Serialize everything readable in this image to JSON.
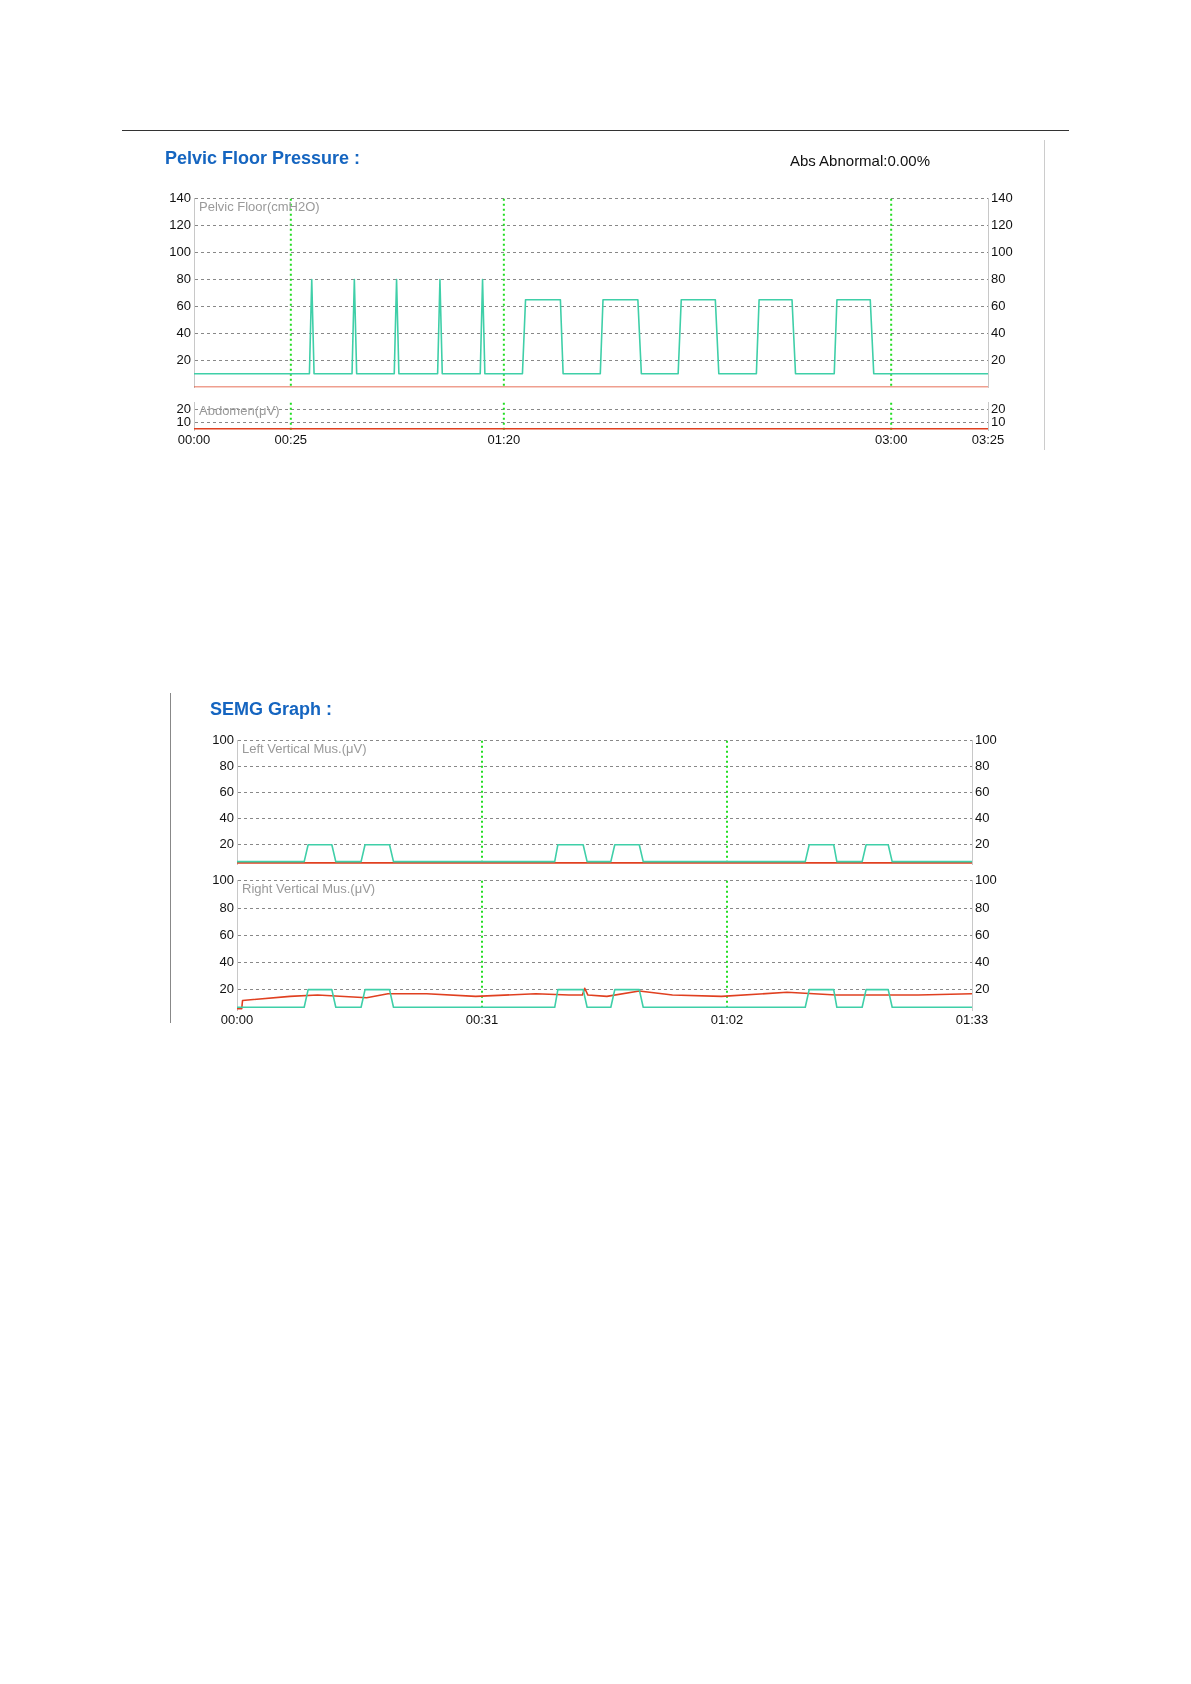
{
  "chart_data": [
    {
      "type": "line",
      "title": "Pelvic Floor Pressure :",
      "ylabel": "Pelvic Floor(cmH2O)",
      "annotations": [
        "Abs Abnormal:0.00%"
      ],
      "xlim": [
        0,
        205
      ],
      "ylim": [
        0,
        140
      ],
      "yticks": [
        20,
        40,
        60,
        80,
        100,
        120,
        140
      ],
      "y2lim": [
        0,
        140
      ],
      "y2ticks": [
        20,
        40,
        60,
        80,
        100,
        120,
        140
      ],
      "tick_labels": "y",
      "grid": "y",
      "legend": false,
      "marker": "none",
      "ref_lines": [
        {
          "axis": "x",
          "value": 25,
          "color": "#22dd22",
          "line_style": "dotted"
        },
        {
          "axis": "x",
          "value": 80,
          "color": "#22dd22",
          "line_style": "dotted"
        },
        {
          "axis": "x",
          "value": 180,
          "color": "#22dd22",
          "line_style": "dotted"
        }
      ],
      "series": [
        {
          "color": "#3fcfa8",
          "x": [
            0,
            29.8,
            30.4,
            31.0,
            40.8,
            41.4,
            42.0,
            51.7,
            52.3,
            52.9,
            62.9,
            63.5,
            64.1,
            73.9,
            74.5,
            75.1,
            84.8,
            85.6,
            94.6,
            95.3,
            104.9,
            105.6,
            114.6,
            115.5,
            125.0,
            125.8,
            134.6,
            135.5,
            145.2,
            145.9,
            154.4,
            155.3,
            165.3,
            166.0,
            174.6,
            175.5,
            205
          ],
          "values": [
            10,
            10,
            80,
            10,
            10,
            80,
            10,
            10,
            80,
            10,
            10,
            80,
            10,
            10,
            80,
            10,
            10,
            65,
            65,
            10,
            10,
            65,
            65,
            10,
            10,
            65,
            65,
            10,
            10,
            65,
            65,
            10,
            10,
            65,
            65,
            10,
            10
          ]
        },
        {
          "color": "#e04020",
          "x": [
            0,
            205
          ],
          "values": [
            0,
            0
          ]
        }
      ]
    },
    {
      "type": "line",
      "ylabel": "Abdomen(μV)",
      "xlim": [
        0,
        205
      ],
      "xticks": [
        {
          "value": 0,
          "label": "00:00"
        },
        {
          "value": 25,
          "label": "00:25"
        },
        {
          "value": 80,
          "label": "01:20"
        },
        {
          "value": 180,
          "label": "03:00"
        },
        {
          "value": 205,
          "label": "03:25"
        }
      ],
      "ylim": [
        4,
        25
      ],
      "yticks": [
        10,
        20
      ],
      "y2lim": [
        4,
        25
      ],
      "y2ticks": [
        10,
        20
      ],
      "grid": "y",
      "legend": false,
      "marker": "none",
      "ref_lines": [
        {
          "axis": "x",
          "value": 25,
          "color": "#22dd22",
          "line_style": "dotted"
        },
        {
          "axis": "x",
          "value": 80,
          "color": "#22dd22",
          "line_style": "dotted"
        },
        {
          "axis": "x",
          "value": 180,
          "color": "#22dd22",
          "line_style": "dotted"
        }
      ],
      "series": [
        {
          "color": "#e04020",
          "x": [
            0,
            205
          ],
          "values": [
            5,
            5
          ]
        }
      ]
    },
    {
      "type": "line",
      "title": "SEMG Graph :",
      "ylabel": "Left Vertical Mus.(μV)",
      "xlim": [
        0,
        93
      ],
      "ylim": [
        5,
        100
      ],
      "yticks": [
        20,
        40,
        60,
        80,
        100
      ],
      "y2lim": [
        5,
        100
      ],
      "y2ticks": [
        20,
        40,
        60,
        80,
        100
      ],
      "tick_labels": "y",
      "grid": "y",
      "legend": false,
      "marker": "none",
      "ref_lines": [
        {
          "axis": "x",
          "value": 31,
          "color": "#22dd22",
          "line_style": "dotted"
        },
        {
          "axis": "x",
          "value": 62,
          "color": "#22dd22",
          "line_style": "dotted"
        }
      ],
      "series": [
        {
          "color": "#3fcfa8",
          "x": [
            0,
            8.5,
            9.0,
            12.0,
            12.5,
            15.7,
            16.2,
            19.3,
            19.8,
            40.2,
            40.6,
            43.8,
            44.3,
            47.3,
            47.8,
            50.9,
            51.4,
            71.9,
            72.4,
            75.5,
            75.9,
            79.1,
            79.6,
            82.4,
            82.9,
            93
          ],
          "values": [
            7,
            7,
            20,
            20,
            7,
            7,
            20,
            20,
            7,
            7,
            20,
            20,
            7,
            7,
            20,
            20,
            7,
            7,
            20,
            20,
            7,
            7,
            20,
            20,
            7,
            7
          ]
        },
        {
          "color": "#e04020",
          "x": [
            0,
            93
          ],
          "values": [
            6,
            6
          ]
        }
      ]
    },
    {
      "type": "line",
      "ylabel": "Right Vertical Mus.(μV)",
      "xlim": [
        0,
        93
      ],
      "xticks": [
        {
          "value": 0,
          "label": "00:00"
        },
        {
          "value": 31,
          "label": "00:31"
        },
        {
          "value": 62,
          "label": "01:02"
        },
        {
          "value": 93,
          "label": "01:33"
        }
      ],
      "ylim": [
        5,
        100
      ],
      "yticks": [
        20,
        40,
        60,
        80,
        100
      ],
      "y2lim": [
        5,
        100
      ],
      "y2ticks": [
        20,
        40,
        60,
        80,
        100
      ],
      "grid": "y",
      "legend": false,
      "marker": "none",
      "ref_lines": [
        {
          "axis": "x",
          "value": 31,
          "color": "#22dd22",
          "line_style": "dotted"
        },
        {
          "axis": "x",
          "value": 62,
          "color": "#22dd22",
          "line_style": "dotted"
        }
      ],
      "series": [
        {
          "color": "#3fcfa8",
          "x": [
            0,
            8.5,
            9.0,
            12.0,
            12.5,
            15.7,
            16.2,
            19.3,
            19.8,
            40.2,
            40.6,
            43.8,
            44.3,
            47.3,
            47.8,
            50.9,
            51.4,
            71.9,
            72.4,
            75.5,
            75.9,
            79.1,
            79.6,
            82.4,
            82.9,
            93
          ],
          "values": [
            7,
            7,
            20,
            20,
            7,
            7,
            20,
            20,
            7,
            7,
            20,
            20,
            7,
            7,
            20,
            20,
            7,
            7,
            20,
            20,
            7,
            7,
            20,
            20,
            7,
            7
          ]
        },
        {
          "color": "#e04020",
          "x": [
            0,
            0.6,
            0.7,
            6.7,
            10.2,
            16.4,
            19.1,
            24.0,
            30.2,
            37.8,
            42.0,
            43.7,
            44.0,
            44.4,
            46.8,
            50.9,
            55.1,
            61.3,
            69.6,
            75.8,
            86.2,
            93
          ],
          "values": [
            6,
            6,
            12,
            15,
            16,
            14,
            17,
            17,
            15,
            17,
            16,
            16,
            21,
            16,
            15,
            19,
            16,
            15,
            18,
            16,
            16,
            17
          ]
        }
      ]
    }
  ]
}
